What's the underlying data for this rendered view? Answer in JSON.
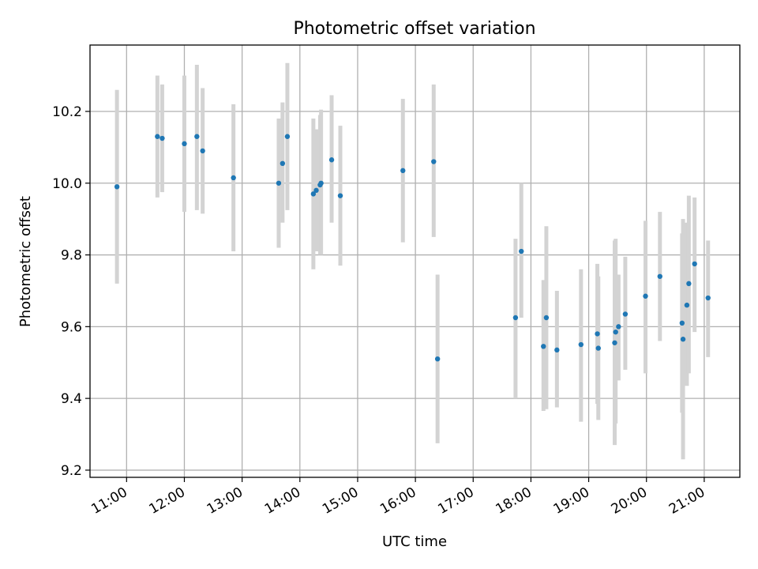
{
  "chart_data": {
    "type": "scatter",
    "title": "Photometric offset variation",
    "xlabel": "UTC time",
    "ylabel": "Photometric offset",
    "x_ticks": [
      "11:00",
      "12:00",
      "13:00",
      "14:00",
      "15:00",
      "16:00",
      "17:00",
      "18:00",
      "19:00",
      "20:00",
      "21:00"
    ],
    "y_ticks": [
      "9.2",
      "9.4",
      "9.6",
      "9.8",
      "10.0",
      "10.2"
    ],
    "xlim": [
      "10:22",
      "21:37"
    ],
    "ylim": [
      9.18,
      10.385
    ],
    "grid": true,
    "colors": {
      "point": "#1f77b4",
      "errorbar": "#d3d3d3",
      "grid": "#b0b0b0"
    },
    "points": [
      {
        "x": "10:50",
        "y": 9.99,
        "ylow": 9.72,
        "yhigh": 10.26
      },
      {
        "x": "11:32",
        "y": 10.13,
        "ylow": 9.96,
        "yhigh": 10.3
      },
      {
        "x": "11:37",
        "y": 10.125,
        "ylow": 9.975,
        "yhigh": 10.275
      },
      {
        "x": "12:00",
        "y": 10.11,
        "ylow": 9.92,
        "yhigh": 10.3
      },
      {
        "x": "12:13",
        "y": 10.13,
        "ylow": 9.925,
        "yhigh": 10.33
      },
      {
        "x": "12:19",
        "y": 10.09,
        "ylow": 9.915,
        "yhigh": 10.265
      },
      {
        "x": "12:51",
        "y": 10.015,
        "ylow": 9.81,
        "yhigh": 10.22
      },
      {
        "x": "13:38",
        "y": 10.0,
        "ylow": 9.82,
        "yhigh": 10.18
      },
      {
        "x": "13:42",
        "y": 10.055,
        "ylow": 9.89,
        "yhigh": 10.225
      },
      {
        "x": "13:47",
        "y": 10.13,
        "ylow": 9.925,
        "yhigh": 10.335
      },
      {
        "x": "14:14",
        "y": 9.97,
        "ylow": 9.76,
        "yhigh": 10.18
      },
      {
        "x": "14:17",
        "y": 9.98,
        "ylow": 9.81,
        "yhigh": 10.15
      },
      {
        "x": "14:21",
        "y": 9.995,
        "ylow": 9.8,
        "yhigh": 10.19
      },
      {
        "x": "14:22",
        "y": 10.0,
        "ylow": 9.8,
        "yhigh": 10.205
      },
      {
        "x": "14:33",
        "y": 10.065,
        "ylow": 9.89,
        "yhigh": 10.245
      },
      {
        "x": "14:42",
        "y": 9.965,
        "ylow": 9.77,
        "yhigh": 10.16
      },
      {
        "x": "15:47",
        "y": 10.035,
        "ylow": 9.835,
        "yhigh": 10.235
      },
      {
        "x": "16:19",
        "y": 10.06,
        "ylow": 9.85,
        "yhigh": 10.275
      },
      {
        "x": "16:23",
        "y": 9.51,
        "ylow": 9.275,
        "yhigh": 9.745
      },
      {
        "x": "17:44",
        "y": 9.625,
        "ylow": 9.4,
        "yhigh": 9.845
      },
      {
        "x": "17:50",
        "y": 9.81,
        "ylow": 9.625,
        "yhigh": 10.0
      },
      {
        "x": "18:13",
        "y": 9.545,
        "ylow": 9.365,
        "yhigh": 9.73
      },
      {
        "x": "18:16",
        "y": 9.625,
        "ylow": 9.37,
        "yhigh": 9.88
      },
      {
        "x": "18:27",
        "y": 9.535,
        "ylow": 9.375,
        "yhigh": 9.7
      },
      {
        "x": "18:52",
        "y": 9.55,
        "ylow": 9.335,
        "yhigh": 9.76
      },
      {
        "x": "19:09",
        "y": 9.58,
        "ylow": 9.385,
        "yhigh": 9.775
      },
      {
        "x": "19:10",
        "y": 9.54,
        "ylow": 9.34,
        "yhigh": 9.74
      },
      {
        "x": "19:27",
        "y": 9.555,
        "ylow": 9.27,
        "yhigh": 9.84
      },
      {
        "x": "19:28",
        "y": 9.585,
        "ylow": 9.33,
        "yhigh": 9.845
      },
      {
        "x": "19:31",
        "y": 9.6,
        "ylow": 9.45,
        "yhigh": 9.745
      },
      {
        "x": "19:38",
        "y": 9.635,
        "ylow": 9.48,
        "yhigh": 9.795
      },
      {
        "x": "19:59",
        "y": 9.685,
        "ylow": 9.47,
        "yhigh": 9.895
      },
      {
        "x": "20:14",
        "y": 9.74,
        "ylow": 9.56,
        "yhigh": 9.92
      },
      {
        "x": "20:37",
        "y": 9.61,
        "ylow": 9.36,
        "yhigh": 9.86
      },
      {
        "x": "20:38",
        "y": 9.565,
        "ylow": 9.23,
        "yhigh": 9.9
      },
      {
        "x": "20:42",
        "y": 9.66,
        "ylow": 9.435,
        "yhigh": 9.89
      },
      {
        "x": "20:44",
        "y": 9.72,
        "ylow": 9.47,
        "yhigh": 9.965
      },
      {
        "x": "20:50",
        "y": 9.775,
        "ylow": 9.585,
        "yhigh": 9.96
      },
      {
        "x": "21:04",
        "y": 9.68,
        "ylow": 9.515,
        "yhigh": 9.84
      }
    ]
  }
}
